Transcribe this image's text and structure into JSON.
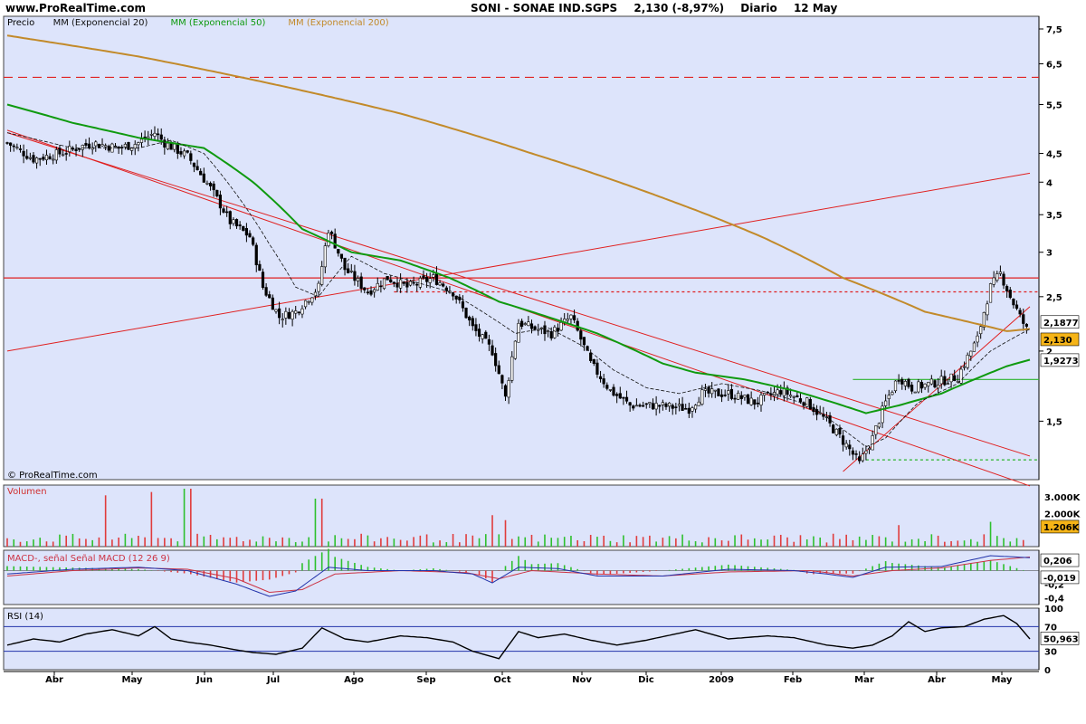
{
  "header": {
    "site": "www.ProRealTime.com",
    "symbol": "SONI - SONAE IND.SGPS",
    "quote": "2,130 (-8,97%)",
    "period": "Diario",
    "date": "12 May"
  },
  "colors": {
    "panel_bg": "#dde4fb",
    "up": "#2ec02e",
    "down": "#e03c3c",
    "ema20": "#111111",
    "ema50": "#0f9a0f",
    "ema200": "#c28a2a",
    "trend": "#e02020",
    "rsi_line": "#000000",
    "macd": "#2233aa",
    "signal": "#cc3344"
  },
  "chart_data": [
    {
      "type": "candlestick",
      "panel": "price",
      "legend": [
        "Precio",
        "MM (Exponencial 20)",
        "MM (Exponencial 50)",
        "MM (Exponencial 200)"
      ],
      "copyright": "© ProRealTime.com",
      "x_labels": [
        "Abr",
        "May",
        "Jun",
        "Jul",
        "Ago",
        "Sep",
        "Oct",
        "Nov",
        "Dic",
        "2009",
        "Feb",
        "Mar",
        "Abr",
        "May"
      ],
      "y_ticks": [
        "7,5",
        "6,5",
        "5,5",
        "4,5",
        "4",
        "3,5",
        "3",
        "2,5",
        "2",
        "1,5"
      ],
      "y_scale": "log",
      "ylim": [
        1.18,
        7.9
      ],
      "last_price": "2,130",
      "ema20_last": "2,1877",
      "ema50_last": "1,9273",
      "ema200_path": [
        [
          0,
          7.3
        ],
        [
          40,
          6.7
        ],
        [
          80,
          6.0
        ],
        [
          120,
          5.3
        ],
        [
          160,
          4.5
        ],
        [
          200,
          3.75
        ],
        [
          230,
          3.2
        ],
        [
          255,
          2.7
        ],
        [
          280,
          2.35
        ],
        [
          305,
          2.17
        ],
        [
          312,
          2.19
        ]
      ],
      "ema50_path": [
        [
          0,
          5.5
        ],
        [
          20,
          5.1
        ],
        [
          40,
          4.8
        ],
        [
          55,
          4.65
        ],
        [
          60,
          4.6
        ],
        [
          75,
          4.0
        ],
        [
          90,
          3.3
        ],
        [
          105,
          3.0
        ],
        [
          120,
          2.9
        ],
        [
          135,
          2.7
        ],
        [
          150,
          2.45
        ],
        [
          165,
          2.3
        ],
        [
          180,
          2.15
        ],
        [
          200,
          1.9
        ],
        [
          210,
          1.83
        ],
        [
          225,
          1.78
        ],
        [
          240,
          1.7
        ],
        [
          252,
          1.62
        ],
        [
          262,
          1.55
        ],
        [
          272,
          1.6
        ],
        [
          285,
          1.68
        ],
        [
          295,
          1.78
        ],
        [
          305,
          1.88
        ],
        [
          312,
          1.93
        ]
      ],
      "ema20_path": [
        [
          0,
          4.9
        ],
        [
          20,
          4.6
        ],
        [
          40,
          4.6
        ],
        [
          50,
          4.75
        ],
        [
          60,
          4.5
        ],
        [
          70,
          3.8
        ],
        [
          80,
          3.1
        ],
        [
          88,
          2.6
        ],
        [
          95,
          2.5
        ],
        [
          105,
          2.95
        ],
        [
          115,
          2.75
        ],
        [
          125,
          2.65
        ],
        [
          135,
          2.55
        ],
        [
          145,
          2.35
        ],
        [
          155,
          2.15
        ],
        [
          165,
          2.2
        ],
        [
          175,
          2.05
        ],
        [
          185,
          1.85
        ],
        [
          195,
          1.72
        ],
        [
          205,
          1.68
        ],
        [
          218,
          1.75
        ],
        [
          230,
          1.7
        ],
        [
          245,
          1.6
        ],
        [
          255,
          1.45
        ],
        [
          262,
          1.35
        ],
        [
          268,
          1.4
        ],
        [
          278,
          1.62
        ],
        [
          290,
          1.75
        ],
        [
          300,
          2.0
        ],
        [
          312,
          2.19
        ]
      ],
      "horizontal_lines": [
        {
          "y": 6.15,
          "style": "dashed"
        },
        {
          "y": 2.7,
          "style": "solid"
        },
        {
          "y": 2.55,
          "style": "dotted"
        },
        {
          "y": 1.78,
          "style": "solid-green"
        },
        {
          "y": 1.28,
          "style": "dotted-green"
        }
      ],
      "trend_lines": [
        {
          "from": [
            0,
            4.95
          ],
          "to": [
            312,
            1.15
          ]
        },
        {
          "from": [
            0,
            4.9
          ],
          "to": [
            312,
            1.3
          ]
        },
        {
          "from": [
            0,
            2.0
          ],
          "to": [
            312,
            4.15
          ]
        },
        {
          "from": [
            255,
            1.22
          ],
          "to": [
            312,
            2.4
          ]
        }
      ],
      "price_path": [
        [
          0,
          4.7
        ],
        [
          8,
          4.4
        ],
        [
          16,
          4.5
        ],
        [
          26,
          4.7
        ],
        [
          34,
          4.6
        ],
        [
          40,
          4.7
        ],
        [
          45,
          4.9
        ],
        [
          48,
          4.7
        ],
        [
          55,
          4.45
        ],
        [
          62,
          3.9
        ],
        [
          68,
          3.4
        ],
        [
          74,
          3.2
        ],
        [
          78,
          2.6
        ],
        [
          83,
          2.3
        ],
        [
          88,
          2.35
        ],
        [
          95,
          2.6
        ],
        [
          98,
          3.3
        ],
        [
          103,
          2.8
        ],
        [
          110,
          2.55
        ],
        [
          116,
          2.7
        ],
        [
          122,
          2.6
        ],
        [
          130,
          2.7
        ],
        [
          136,
          2.55
        ],
        [
          142,
          2.2
        ],
        [
          148,
          2.0
        ],
        [
          152,
          1.65
        ],
        [
          156,
          2.25
        ],
        [
          160,
          2.2
        ],
        [
          166,
          2.15
        ],
        [
          172,
          2.3
        ],
        [
          178,
          1.9
        ],
        [
          184,
          1.7
        ],
        [
          190,
          1.6
        ],
        [
          198,
          1.6
        ],
        [
          208,
          1.58
        ],
        [
          212,
          1.68
        ],
        [
          220,
          1.68
        ],
        [
          228,
          1.62
        ],
        [
          236,
          1.7
        ],
        [
          244,
          1.62
        ],
        [
          250,
          1.5
        ],
        [
          256,
          1.36
        ],
        [
          260,
          1.26
        ],
        [
          264,
          1.4
        ],
        [
          268,
          1.62
        ],
        [
          272,
          1.8
        ],
        [
          276,
          1.72
        ],
        [
          282,
          1.75
        ],
        [
          290,
          1.8
        ],
        [
          296,
          2.1
        ],
        [
          300,
          2.6
        ],
        [
          303,
          2.75
        ],
        [
          306,
          2.5
        ],
        [
          309,
          2.3
        ],
        [
          312,
          2.13
        ]
      ]
    },
    {
      "type": "bar",
      "panel": "volume",
      "label": "Volumen",
      "y_ticks": [
        "3.000K",
        "2.000K"
      ],
      "last_value": "1.206K",
      "ylim": [
        0,
        3500
      ],
      "spikes": [
        [
          30,
          3100
        ],
        [
          44,
          3300
        ],
        [
          55,
          3500
        ],
        [
          95,
          2900
        ],
        [
          148,
          1900
        ],
        [
          152,
          1600
        ],
        [
          272,
          1300
        ],
        [
          300,
          1500
        ]
      ],
      "baseline": 600
    },
    {
      "type": "line",
      "panel": "macd",
      "label": "MACD-, señal Señal MACD (12 26 9)",
      "y_ticks": [
        "-0,2",
        "-0,4"
      ],
      "values_printed": [
        "0,206",
        "-0,019"
      ],
      "ylim": [
        -0.5,
        0.3
      ],
      "macd_path": [
        [
          0,
          -0.05
        ],
        [
          20,
          0.02
        ],
        [
          40,
          0.05
        ],
        [
          55,
          0.0
        ],
        [
          70,
          -0.2
        ],
        [
          80,
          -0.38
        ],
        [
          88,
          -0.3
        ],
        [
          98,
          0.05
        ],
        [
          110,
          0.0
        ],
        [
          130,
          0.0
        ],
        [
          142,
          -0.05
        ],
        [
          148,
          -0.18
        ],
        [
          156,
          0.05
        ],
        [
          168,
          0.03
        ],
        [
          180,
          -0.08
        ],
        [
          200,
          -0.08
        ],
        [
          220,
          0.02
        ],
        [
          240,
          0.0
        ],
        [
          250,
          -0.05
        ],
        [
          258,
          -0.1
        ],
        [
          268,
          0.05
        ],
        [
          285,
          0.06
        ],
        [
          300,
          0.22
        ],
        [
          312,
          0.19
        ]
      ],
      "signal_path": [
        [
          0,
          -0.08
        ],
        [
          20,
          0.0
        ],
        [
          40,
          0.04
        ],
        [
          55,
          0.02
        ],
        [
          70,
          -0.12
        ],
        [
          80,
          -0.32
        ],
        [
          90,
          -0.28
        ],
        [
          100,
          -0.05
        ],
        [
          120,
          0.0
        ],
        [
          140,
          -0.03
        ],
        [
          150,
          -0.12
        ],
        [
          160,
          0.0
        ],
        [
          180,
          -0.05
        ],
        [
          200,
          -0.08
        ],
        [
          220,
          -0.02
        ],
        [
          245,
          0.0
        ],
        [
          258,
          -0.08
        ],
        [
          270,
          0.0
        ],
        [
          285,
          0.04
        ],
        [
          300,
          0.15
        ],
        [
          312,
          0.2
        ]
      ]
    },
    {
      "type": "line",
      "panel": "rsi",
      "label": "RSI (14)",
      "y_ticks": [
        "100",
        "70",
        "30",
        "0"
      ],
      "value": "50,963",
      "ylim": [
        0,
        100
      ],
      "levels": [
        70,
        30
      ],
      "path": [
        [
          0,
          40
        ],
        [
          8,
          50
        ],
        [
          16,
          45
        ],
        [
          24,
          58
        ],
        [
          32,
          65
        ],
        [
          40,
          55
        ],
        [
          45,
          70
        ],
        [
          50,
          50
        ],
        [
          55,
          45
        ],
        [
          62,
          40
        ],
        [
          70,
          32
        ],
        [
          75,
          28
        ],
        [
          82,
          25
        ],
        [
          90,
          35
        ],
        [
          96,
          68
        ],
        [
          103,
          50
        ],
        [
          110,
          45
        ],
        [
          120,
          55
        ],
        [
          128,
          52
        ],
        [
          136,
          45
        ],
        [
          142,
          30
        ],
        [
          150,
          18
        ],
        [
          156,
          62
        ],
        [
          162,
          52
        ],
        [
          170,
          58
        ],
        [
          178,
          48
        ],
        [
          186,
          40
        ],
        [
          195,
          48
        ],
        [
          210,
          65
        ],
        [
          220,
          50
        ],
        [
          232,
          55
        ],
        [
          240,
          52
        ],
        [
          250,
          40
        ],
        [
          258,
          35
        ],
        [
          264,
          40
        ],
        [
          270,
          55
        ],
        [
          275,
          78
        ],
        [
          280,
          62
        ],
        [
          285,
          68
        ],
        [
          292,
          70
        ],
        [
          298,
          82
        ],
        [
          304,
          88
        ],
        [
          308,
          75
        ],
        [
          312,
          50
        ]
      ]
    }
  ]
}
